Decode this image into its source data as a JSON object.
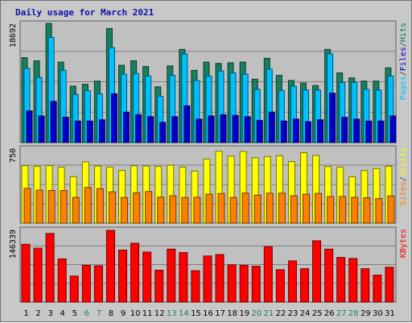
{
  "chart_data": {
    "type": "bar",
    "title": "Daily usage for March 2021",
    "categories": [
      "1",
      "2",
      "3",
      "4",
      "5",
      "6",
      "7",
      "8",
      "9",
      "10",
      "11",
      "12",
      "13",
      "14",
      "15",
      "16",
      "17",
      "18",
      "19",
      "20",
      "21",
      "22",
      "23",
      "24",
      "25",
      "26",
      "27",
      "28",
      "29",
      "30",
      "31"
    ],
    "weekend_days": [
      "6",
      "7",
      "13",
      "14",
      "20",
      "21",
      "27",
      "28"
    ],
    "panels": [
      {
        "name": "pages-files-hits",
        "max_label": "18692",
        "ymax": 18692,
        "right_label": [
          "Pages",
          "/",
          "Files",
          "/",
          "Hits"
        ],
        "right_label_colors": [
          "#00c0ff",
          "#404040",
          "#0000cc",
          "#404040",
          "#008060"
        ],
        "series": [
          {
            "name": "Hits",
            "color": "#168060",
            "values": [
              13400,
              12900,
              18800,
              12700,
              8900,
              9200,
              9700,
              18000,
              12200,
              12900,
              12000,
              8800,
              12100,
              14700,
              11400,
              12700,
              12500,
              12600,
              12700,
              10000,
              13300,
              10600,
              9800,
              9400,
              9000,
              14700,
              11000,
              10200,
              9700,
              9700,
              11800
            ]
          },
          {
            "name": "Files",
            "color": "#00c0ff",
            "values": [
              11700,
              10300,
              16600,
              11400,
              7600,
              8200,
              7700,
              15000,
              10800,
              10900,
              10500,
              7300,
              10600,
              14000,
              9800,
              10500,
              11300,
              11000,
              10800,
              8400,
              11600,
              8200,
              8900,
              8300,
              8300,
              14000,
              9500,
              9500,
              8400,
              8300,
              10500
            ]
          },
          {
            "name": "Pages",
            "color": "#0000cc",
            "values": [
              5000,
              4200,
              6500,
              4000,
              3400,
              3400,
              3600,
              7700,
              4800,
              4400,
              4100,
              3200,
              4100,
              5800,
              3700,
              4200,
              4400,
              4300,
              4100,
              3500,
              4800,
              3400,
              3700,
              3300,
              3600,
              7800,
              4000,
              3700,
              3400,
              3400,
              4200
            ]
          }
        ]
      },
      {
        "name": "visits-sites",
        "max_label": "750",
        "ymax": 750,
        "right_label": [
          "Sites",
          "/",
          "Visits"
        ],
        "right_label_colors": [
          "#ff8000",
          "#404040",
          "#ffff00"
        ],
        "series": [
          {
            "name": "Visits",
            "color": "#ffff00",
            "values": [
              582,
              575,
              582,
              566,
              471,
              620,
              578,
              566,
              533,
              580,
              578,
              574,
              586,
              566,
              526,
              649,
              727,
              677,
              725,
              662,
              674,
              682,
              623,
              713,
              685,
              572,
              566,
              469,
              532,
              553,
              575
            ]
          },
          {
            "name": "Sites",
            "color": "#ff8000",
            "values": [
              352,
              333,
              330,
              330,
              260,
              361,
              349,
              317,
              259,
              306,
              320,
              263,
              277,
              260,
              261,
              293,
              300,
              260,
              304,
              283,
              303,
              303,
              277,
              292,
              301,
              269,
              269,
              261,
              257,
              248,
              275
            ]
          }
        ]
      },
      {
        "name": "kbytes",
        "max_label": "146339",
        "ymax": 146339,
        "right_label": [
          "KBytes"
        ],
        "right_label_colors": [
          "#ff0000"
        ],
        "series": [
          {
            "name": "KBytes",
            "color": "#ff0000",
            "values": [
              118000,
              110000,
              140000,
              88000,
              53000,
              75000,
              74000,
              146339,
              106000,
              120000,
              102000,
              65000,
              108000,
              101000,
              64000,
              94000,
              97000,
              76000,
              75000,
              73000,
              113000,
              66000,
              84000,
              68000,
              125000,
              108000,
              91000,
              89000,
              68000,
              55000,
              71000
            ]
          }
        ]
      }
    ]
  }
}
